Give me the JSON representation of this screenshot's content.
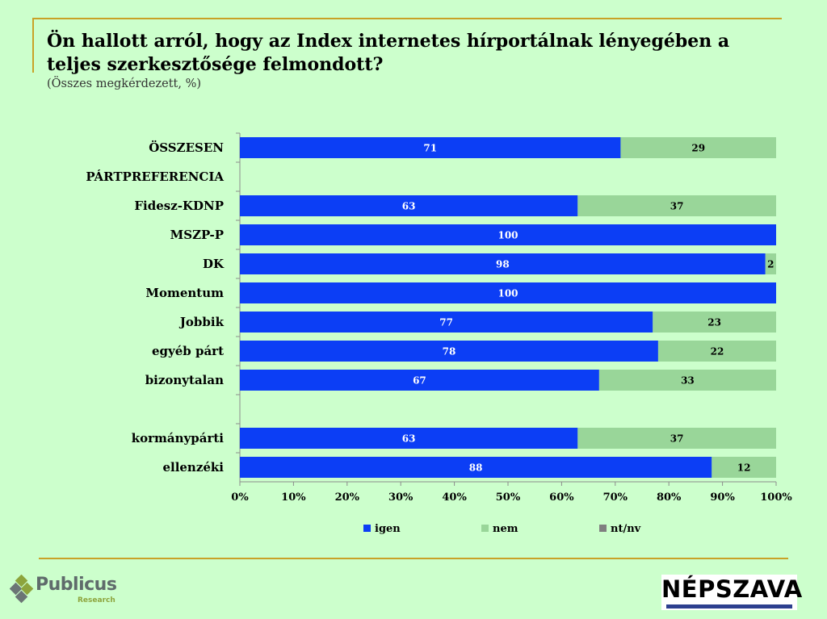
{
  "title": "Ön hallott arról, hogy az Index internetes hírportálnak lényegében a teljes szerkesztősége felmondott?",
  "subtitle": "(Összes megkérdezett, %)",
  "chart_data": {
    "type": "bar",
    "orientation": "horizontal",
    "stacked": true,
    "categories": [
      "ÖSSZESEN",
      "PÁRTPREFERENCIA",
      "Fidesz-KDNP",
      "MSZP-P",
      "DK",
      "Momentum",
      "Jobbik",
      "egyéb párt",
      "bizonytalan",
      "",
      "kormánypárti",
      "ellenzéki"
    ],
    "series": [
      {
        "name": "igen",
        "values": [
          71,
          null,
          63,
          100,
          98,
          100,
          77,
          78,
          67,
          null,
          63,
          88
        ],
        "color": "#0c3ef5"
      },
      {
        "name": "nem",
        "values": [
          29,
          null,
          37,
          0,
          2,
          0,
          23,
          22,
          33,
          null,
          37,
          12
        ],
        "color": "#99d699"
      },
      {
        "name": "nt/nv",
        "values": [
          0,
          null,
          0,
          0,
          0,
          0,
          0,
          0,
          0,
          null,
          0,
          0
        ],
        "color": "#7f7f7f"
      }
    ],
    "x_ticks": [
      "0%",
      "10%",
      "20%",
      "30%",
      "40%",
      "50%",
      "60%",
      "70%",
      "80%",
      "90%",
      "100%"
    ],
    "xlim": [
      0,
      100
    ],
    "legend_position": "bottom",
    "grid": false
  },
  "logos": {
    "publicus": "Publicus",
    "publicus_sub": "Research",
    "nepszava": "NÉPSZAVA"
  },
  "colors": {
    "background": "#ccffcc",
    "accent_line": "#c9a227"
  }
}
